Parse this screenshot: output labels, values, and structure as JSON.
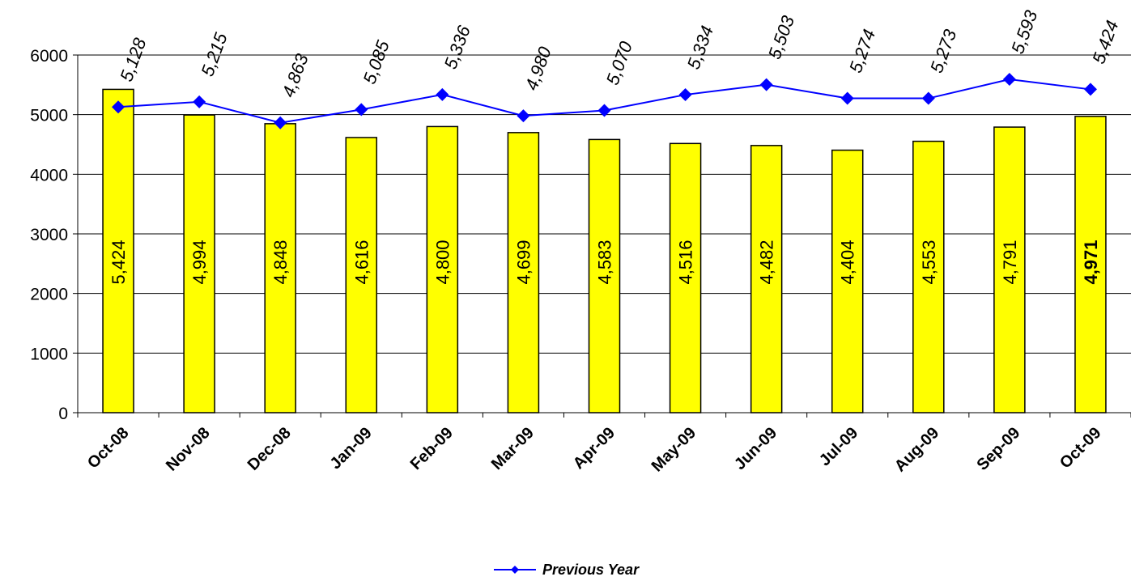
{
  "chart_data": {
    "type": "bar",
    "categories": [
      "Oct-08",
      "Nov-08",
      "Dec-08",
      "Jan-09",
      "Feb-09",
      "Mar-09",
      "Apr-09",
      "May-09",
      "Jun-09",
      "Jul-09",
      "Aug-09",
      "Sep-09",
      "Oct-09"
    ],
    "series": [
      {
        "type": "bar",
        "values": [
          5424,
          4994,
          4848,
          4616,
          4800,
          4699,
          4583,
          4516,
          4482,
          4404,
          4553,
          4791,
          4971
        ],
        "labels": [
          "5,424",
          "4,994",
          "4,848",
          "4,616",
          "4,800",
          "4,699",
          "4,583",
          "4,516",
          "4,482",
          "4,404",
          "4,553",
          "4,791",
          "4,971"
        ],
        "color": "#FFFF00"
      },
      {
        "type": "line",
        "name": "Previous Year",
        "values": [
          5128,
          5215,
          4863,
          5085,
          5336,
          4980,
          5070,
          5334,
          5503,
          5274,
          5273,
          5593,
          5424
        ],
        "labels": [
          "5,128",
          "5,215",
          "4,863",
          "5,085",
          "5,336",
          "4,980",
          "5,070",
          "5,334",
          "5,503",
          "5,274",
          "5,273",
          "5,593",
          "5,424"
        ],
        "color": "#0000FF"
      }
    ],
    "y_ticks": [
      "0",
      "1000",
      "2000",
      "3000",
      "4000",
      "5000",
      "6000"
    ],
    "ylim": [
      0,
      6000
    ],
    "grid": true,
    "legend_position": "bottom"
  }
}
